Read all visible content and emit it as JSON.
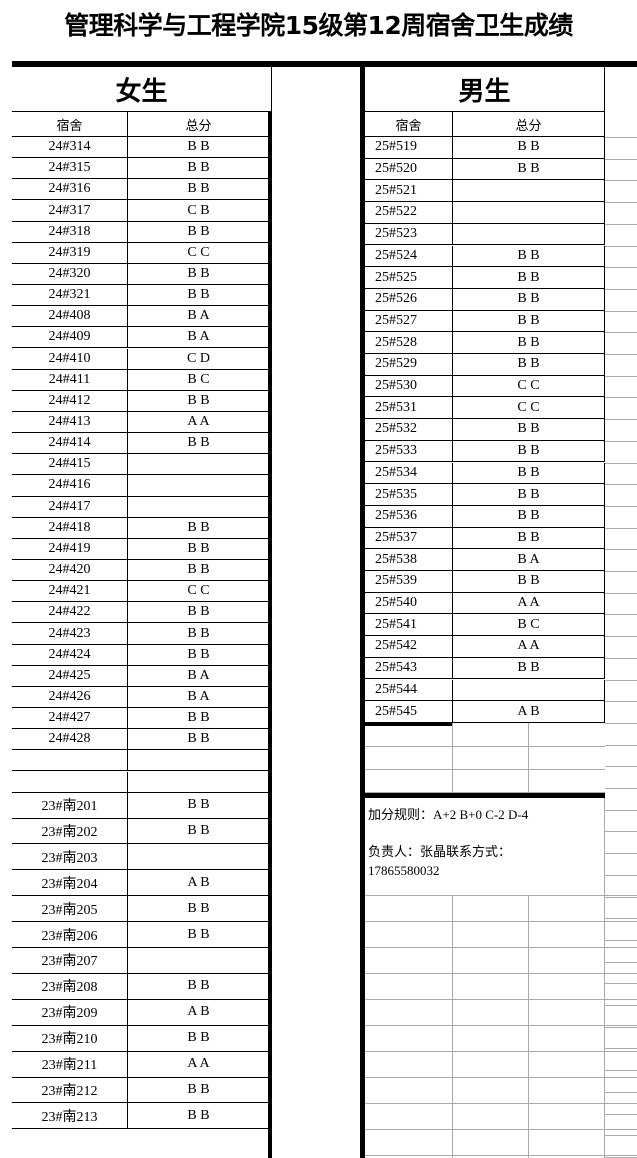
{
  "title": "管理科学与工程学院15级第12周宿舍卫生成绩",
  "female": {
    "heading": "女生",
    "col_room": "宿舍",
    "col_score": "总分",
    "rows": [
      [
        "24#314",
        "B B"
      ],
      [
        "24#315",
        "B B"
      ],
      [
        "24#316",
        "B B"
      ],
      [
        "24#317",
        "C B"
      ],
      [
        "24#318",
        "B B"
      ],
      [
        "24#319",
        "C C"
      ],
      [
        "24#320",
        "B B"
      ],
      [
        "24#321",
        "B B"
      ],
      [
        "24#408",
        "B A"
      ],
      [
        "24#409",
        "B A"
      ],
      [
        "24#410",
        "C D"
      ],
      [
        "24#411",
        "B C"
      ],
      [
        "24#412",
        "B B"
      ],
      [
        "24#413",
        "A A"
      ],
      [
        "24#414",
        "B B"
      ],
      [
        "24#415",
        ""
      ],
      [
        "24#416",
        ""
      ],
      [
        "24#417",
        ""
      ],
      [
        "24#418",
        "B B"
      ],
      [
        "24#419",
        "B B"
      ],
      [
        "24#420",
        "B B"
      ],
      [
        "24#421",
        "C C"
      ],
      [
        "24#422",
        "B B"
      ],
      [
        "24#423",
        "B B"
      ],
      [
        "24#424",
        "B B"
      ],
      [
        "24#425",
        "B A"
      ],
      [
        "24#426",
        "B A"
      ],
      [
        "24#427",
        "B B"
      ],
      [
        "24#428",
        "B B"
      ],
      [
        "",
        ""
      ],
      [
        "",
        ""
      ]
    ],
    "rows2": [
      [
        "23#南201",
        "B B"
      ],
      [
        "23#南202",
        "B B"
      ],
      [
        "23#南203",
        ""
      ],
      [
        "23#南204",
        "A B"
      ],
      [
        "23#南205",
        "B B"
      ],
      [
        "23#南206",
        "B B"
      ],
      [
        "23#南207",
        ""
      ],
      [
        "23#南208",
        "B B"
      ],
      [
        "23#南209",
        "A B"
      ],
      [
        "23#南210",
        "B B"
      ],
      [
        "23#南211",
        "A A"
      ],
      [
        "23#南212",
        "B B"
      ],
      [
        "23#南213",
        "B B"
      ]
    ]
  },
  "male": {
    "heading": "男生",
    "col_room": "宿舍",
    "col_score": "总分",
    "rows": [
      [
        "25#519",
        "B B"
      ],
      [
        "25#520",
        "B B"
      ],
      [
        "25#521",
        ""
      ],
      [
        "25#522",
        ""
      ],
      [
        "25#523",
        ""
      ],
      [
        "25#524",
        "B B"
      ],
      [
        "25#525",
        "B B"
      ],
      [
        "25#526",
        "B B"
      ],
      [
        "25#527",
        "B B"
      ],
      [
        "25#528",
        "B B"
      ],
      [
        "25#529",
        "B B"
      ],
      [
        "25#530",
        "C C"
      ],
      [
        "25#531",
        "C C"
      ],
      [
        "25#532",
        "B B"
      ],
      [
        "25#533",
        "B B"
      ],
      [
        "25#534",
        "B B"
      ],
      [
        "25#535",
        "B B"
      ],
      [
        "25#536",
        "B B"
      ],
      [
        "25#537",
        "B B"
      ],
      [
        "25#538",
        "B A"
      ],
      [
        "25#539",
        "B B"
      ],
      [
        "25#540",
        "A A"
      ],
      [
        "25#541",
        "B C"
      ],
      [
        "25#542",
        "A A"
      ],
      [
        "25#543",
        "B B"
      ],
      [
        "25#544",
        ""
      ],
      [
        "25#545",
        "A B"
      ]
    ]
  },
  "notes": {
    "rule_label": "加分规则：",
    "rule": "A+2 B+0 C-2 D-4",
    "contact_label": "负责人：张晶联系方式：",
    "phone": "17865580032"
  }
}
